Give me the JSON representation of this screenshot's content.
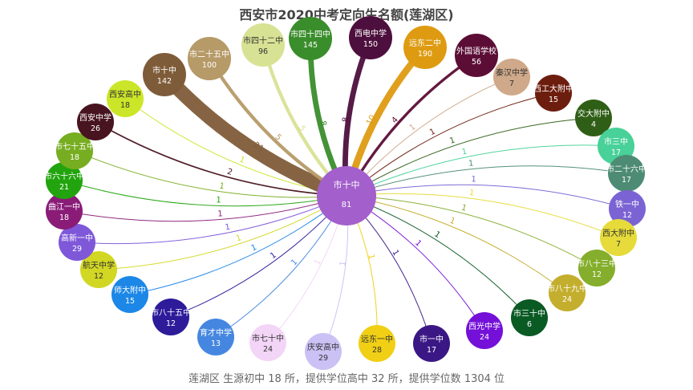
{
  "chart_data": {
    "type": "flow-network",
    "title": "西安市2020中考定向生名额(莲湖区)",
    "subtitle": "莲湖区 生源初中 18 所，提供学位高中 32 所，提供学位数 1304 位",
    "center": {
      "name": "市十中",
      "value": 81,
      "color": "#a35fcb"
    },
    "nodes": [
      {
        "name": "市四十四中",
        "value": 145,
        "color": "#3a8d2b",
        "edge": 8,
        "edge_color": "#3a8d2b"
      },
      {
        "name": "西电中学",
        "value": 150,
        "color": "#4d0f3d",
        "edge": 8,
        "edge_color": "#4d0f3d"
      },
      {
        "name": "远东二中",
        "value": 190,
        "color": "#de9b12",
        "edge": 10,
        "edge_color": "#de9b12"
      },
      {
        "name": "外国语学校",
        "value": 56,
        "color": "#5c0d36",
        "edge": 4,
        "edge_color": "#5c0d36"
      },
      {
        "name": "秦汉中学",
        "value": 7,
        "color": "#cfa989",
        "edge": 1,
        "edge_color": "#cfa989"
      },
      {
        "name": "西工大附中",
        "value": 15,
        "color": "#6d1d0e",
        "edge": 1,
        "edge_color": "#6d1d0e"
      },
      {
        "name": "交大附中",
        "value": 4,
        "color": "#2f5f16",
        "edge": 1,
        "edge_color": "#2f5f16"
      },
      {
        "name": "市三中",
        "value": 17,
        "color": "#48d198",
        "edge": 1,
        "edge_color": "#48d198"
      },
      {
        "name": "市二十六中",
        "value": 17,
        "color": "#4d8b74",
        "edge": 1,
        "edge_color": "#4d8b74"
      },
      {
        "name": "铁一中",
        "value": 12,
        "color": "#7b63d4",
        "edge": 1,
        "edge_color": "#7b63d4"
      },
      {
        "name": "西大附中",
        "value": 7,
        "color": "#e6db3a",
        "edge": 1,
        "edge_color": "#e6db3a"
      },
      {
        "name": "市八十三中",
        "value": 12,
        "color": "#84ae2b",
        "edge": 1,
        "edge_color": "#84ae2b"
      },
      {
        "name": "市八十九中",
        "value": 24,
        "color": "#c4ae2e",
        "edge": 1,
        "edge_color": "#c4ae2e"
      },
      {
        "name": "市三十中",
        "value": 6,
        "color": "#0a5a24",
        "edge": 1,
        "edge_color": "#0a5a24"
      },
      {
        "name": "西光中学",
        "value": 24,
        "color": "#7410d8",
        "edge": 1,
        "edge_color": "#7410d8"
      },
      {
        "name": "市一中",
        "value": 17,
        "color": "#3b1785",
        "edge": 1,
        "edge_color": "#3b1785"
      },
      {
        "name": "远东一中",
        "value": 28,
        "color": "#f1cf15",
        "edge": 1,
        "edge_color": "#f1cf15"
      },
      {
        "name": "庆安高中",
        "value": 29,
        "color": "#cbc1f4",
        "edge": 1,
        "edge_color": "#cbc1f4"
      },
      {
        "name": "市七十中",
        "value": 24,
        "color": "#f3d5f7",
        "edge": 1,
        "edge_color": "#f3d5f7"
      },
      {
        "name": "育才中学",
        "value": 13,
        "color": "#4587e0",
        "edge": 1,
        "edge_color": "#4587e0"
      },
      {
        "name": "市八十五中",
        "value": 12,
        "color": "#2d1b9a",
        "edge": 1,
        "edge_color": "#2d1b9a"
      },
      {
        "name": "师大附中",
        "value": 15,
        "color": "#1c87e6",
        "edge": 1,
        "edge_color": "#1c87e6"
      },
      {
        "name": "航天中学",
        "value": 12,
        "color": "#d2d723",
        "edge": 1,
        "edge_color": "#d2d723"
      },
      {
        "name": "高新一中",
        "value": 29,
        "color": "#7f58d9",
        "edge": 1,
        "edge_color": "#7f58d9"
      },
      {
        "name": "曲江一中",
        "value": 18,
        "color": "#8a1c78",
        "edge": 1,
        "edge_color": "#8a1c78"
      },
      {
        "name": "市六十六中",
        "value": 21,
        "color": "#22a40e",
        "edge": 1,
        "edge_color": "#22a40e"
      },
      {
        "name": "市七十五中",
        "value": 18,
        "color": "#77ad20",
        "edge": 1,
        "edge_color": "#77ad20"
      },
      {
        "name": "西安中学",
        "value": 26,
        "color": "#47141f",
        "edge": 2,
        "edge_color": "#47141f"
      },
      {
        "name": "西安高中",
        "value": 18,
        "color": "#cbe628",
        "edge": 1,
        "edge_color": "#cbe628"
      },
      {
        "name": "市十中",
        "value": 142,
        "color": "#7f5c39",
        "edge": 21,
        "edge_color": "#7f5c39"
      },
      {
        "name": "市二十五中",
        "value": 100,
        "color": "#b69a67",
        "edge": 5,
        "edge_color": "#b69a67"
      },
      {
        "name": "市四十二中",
        "value": 96,
        "color": "#d8e294",
        "edge": 5,
        "edge_color": "#d8e294"
      }
    ]
  }
}
